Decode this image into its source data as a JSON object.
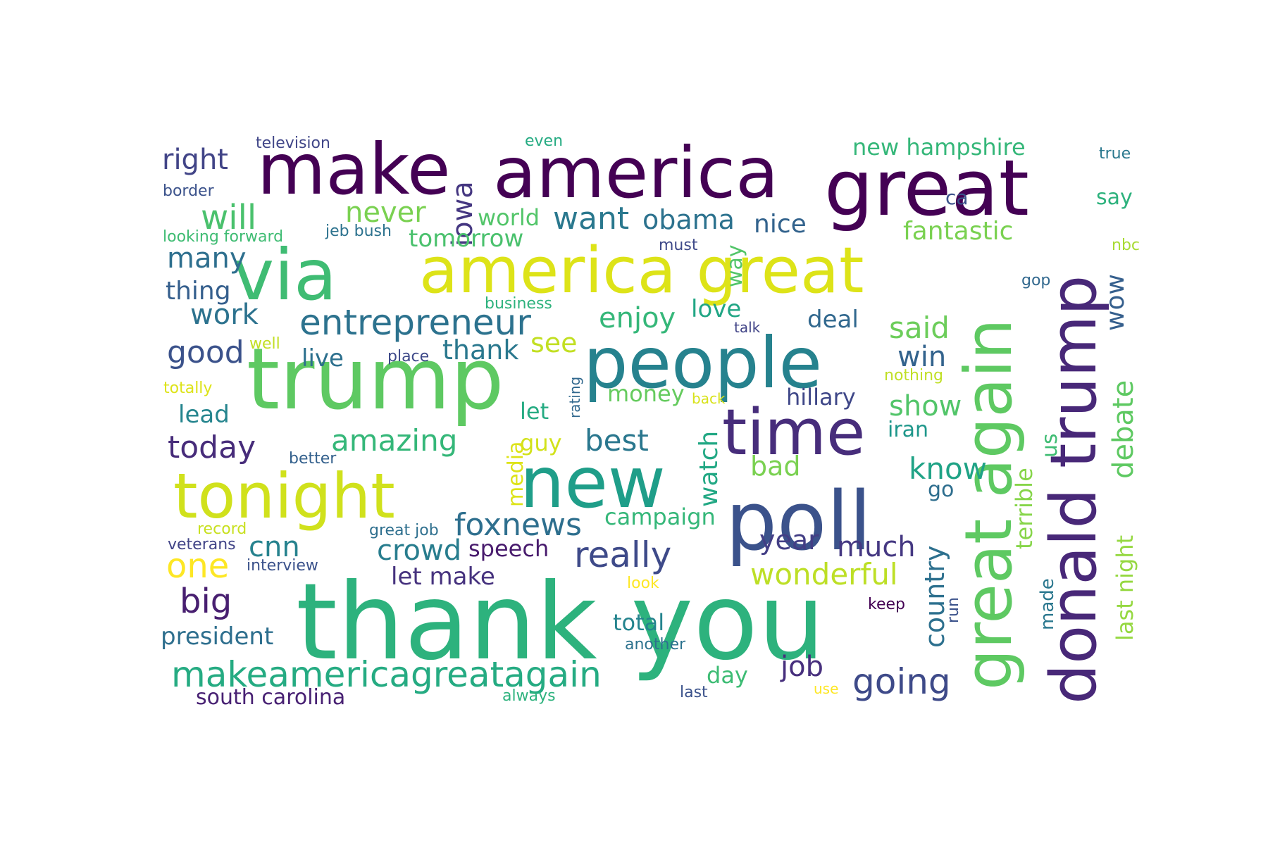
{
  "word_cloud": {
    "words": [
      {
        "text": "thank you",
        "color": "#2db27d"
      },
      {
        "text": "trump",
        "color": "#5ec962"
      },
      {
        "text": "great again",
        "color": "#5ec962"
      },
      {
        "text": "make",
        "color": "#440154"
      },
      {
        "text": "america",
        "color": "#440154"
      },
      {
        "text": "great",
        "color": "#440154"
      },
      {
        "text": "via",
        "color": "#3fbc73"
      },
      {
        "text": "america great",
        "color": "#dde318"
      },
      {
        "text": "people",
        "color": "#26828e"
      },
      {
        "text": "new",
        "color": "#1f9e89"
      },
      {
        "text": "poll",
        "color": "#3b528b"
      },
      {
        "text": "tonight",
        "color": "#d0e11c"
      },
      {
        "text": "donald trump",
        "color": "#482878"
      },
      {
        "text": "time",
        "color": "#472d7b"
      },
      {
        "text": "makeamericagreatagain",
        "color": "#25ab82"
      },
      {
        "text": "entrepreneur",
        "color": "#2c728e"
      },
      {
        "text": "foxnews",
        "color": "#2e6f8e"
      },
      {
        "text": "really",
        "color": "#3e4a89"
      },
      {
        "text": "going",
        "color": "#3e4a89"
      },
      {
        "text": "amazing",
        "color": "#35b779"
      },
      {
        "text": "crowd",
        "color": "#287d8e"
      },
      {
        "text": "wonderful",
        "color": "#bddf26"
      },
      {
        "text": "right",
        "color": "#414487"
      },
      {
        "text": "will",
        "color": "#4ac16d"
      },
      {
        "text": "want",
        "color": "#2a788e"
      },
      {
        "text": "obama",
        "color": "#2c728e"
      },
      {
        "text": "never",
        "color": "#7ad151"
      },
      {
        "text": "iowa",
        "color": "#453781"
      },
      {
        "text": "world",
        "color": "#52c569"
      },
      {
        "text": "tomorrow",
        "color": "#4ac16d"
      },
      {
        "text": "nice",
        "color": "#33638d"
      },
      {
        "text": "new hampshire",
        "color": "#35b779"
      },
      {
        "text": "fantastic",
        "color": "#7ad151"
      },
      {
        "text": "say",
        "color": "#2db27d"
      },
      {
        "text": "ca",
        "color": "#3b528b"
      },
      {
        "text": "true",
        "color": "#2a788e"
      },
      {
        "text": "nbc",
        "color": "#a8db34"
      },
      {
        "text": "gop",
        "color": "#31688e"
      },
      {
        "text": "wow",
        "color": "#355f8d"
      },
      {
        "text": "many",
        "color": "#2e6f8e"
      },
      {
        "text": "thing",
        "color": "#355f8d"
      },
      {
        "text": "work",
        "color": "#2c728e"
      },
      {
        "text": "good",
        "color": "#3b528b"
      },
      {
        "text": "lead",
        "color": "#25858e"
      },
      {
        "text": "today",
        "color": "#472c7a"
      },
      {
        "text": "one",
        "color": "#fde725"
      },
      {
        "text": "cnn",
        "color": "#26828e"
      },
      {
        "text": "big",
        "color": "#481f70"
      },
      {
        "text": "president",
        "color": "#2e6f8e"
      },
      {
        "text": "south carolina",
        "color": "#482173"
      },
      {
        "text": "enjoy",
        "color": "#35b779"
      },
      {
        "text": "love",
        "color": "#21a685"
      },
      {
        "text": "deal",
        "color": "#31688e"
      },
      {
        "text": "said",
        "color": "#6ccd5a"
      },
      {
        "text": "win",
        "color": "#33638d"
      },
      {
        "text": "show",
        "color": "#52c569"
      },
      {
        "text": "iran",
        "color": "#1f978b"
      },
      {
        "text": "hillary",
        "color": "#3f4788"
      },
      {
        "text": "know",
        "color": "#20a386"
      },
      {
        "text": "go",
        "color": "#2e6e8e"
      },
      {
        "text": "us",
        "color": "#3fbc73"
      },
      {
        "text": "debate",
        "color": "#5ec962"
      },
      {
        "text": "terrible",
        "color": "#86d549"
      },
      {
        "text": "last night",
        "color": "#95d840"
      },
      {
        "text": "live",
        "color": "#2d708e"
      },
      {
        "text": "thank",
        "color": "#2a788e"
      },
      {
        "text": "see",
        "color": "#c2df23"
      },
      {
        "text": "let",
        "color": "#25ab82"
      },
      {
        "text": "guy",
        "color": "#d2e21b"
      },
      {
        "text": "best",
        "color": "#2a778e"
      },
      {
        "text": "bad",
        "color": "#7ad151"
      },
      {
        "text": "watch",
        "color": "#22a884"
      },
      {
        "text": "money",
        "color": "#65cb5e"
      },
      {
        "text": "campaign",
        "color": "#35b779"
      },
      {
        "text": "year",
        "color": "#433e85"
      },
      {
        "text": "much",
        "color": "#453882"
      },
      {
        "text": "country",
        "color": "#2d708e"
      },
      {
        "text": "speech",
        "color": "#481b6d"
      },
      {
        "text": "let make",
        "color": "#46327e"
      },
      {
        "text": "total",
        "color": "#25848e"
      },
      {
        "text": "job",
        "color": "#472f7d"
      },
      {
        "text": "day",
        "color": "#3dbc74"
      },
      {
        "text": "media",
        "color": "#dde318"
      },
      {
        "text": "way",
        "color": "#52c569"
      },
      {
        "text": "made",
        "color": "#2a778e"
      },
      {
        "text": "run",
        "color": "#3b528b"
      },
      {
        "text": "television",
        "color": "#404688"
      },
      {
        "text": "border",
        "color": "#3b528b"
      },
      {
        "text": "even",
        "color": "#25ab82"
      },
      {
        "text": "looking forward",
        "color": "#3fbc73"
      },
      {
        "text": "jeb bush",
        "color": "#2c728e"
      },
      {
        "text": "must",
        "color": "#3e4989"
      },
      {
        "text": "business",
        "color": "#2db27d"
      },
      {
        "text": "talk",
        "color": "#414487"
      },
      {
        "text": "well",
        "color": "#c2df23"
      },
      {
        "text": "place",
        "color": "#3e4989"
      },
      {
        "text": "rating",
        "color": "#31688e"
      },
      {
        "text": "nothing",
        "color": "#c0df25"
      },
      {
        "text": "totally",
        "color": "#dde318"
      },
      {
        "text": "back",
        "color": "#d8e219"
      },
      {
        "text": "better",
        "color": "#34618d"
      },
      {
        "text": "record",
        "color": "#c8e020"
      },
      {
        "text": "great job",
        "color": "#2e6f8e"
      },
      {
        "text": "veterans",
        "color": "#414487"
      },
      {
        "text": "interview",
        "color": "#3b528b"
      },
      {
        "text": "look",
        "color": "#fde725"
      },
      {
        "text": "keep",
        "color": "#440154"
      },
      {
        "text": "another",
        "color": "#2c728e"
      },
      {
        "text": "always",
        "color": "#2db27d"
      },
      {
        "text": "last",
        "color": "#3b528b"
      },
      {
        "text": "use",
        "color": "#fde725"
      }
    ]
  }
}
